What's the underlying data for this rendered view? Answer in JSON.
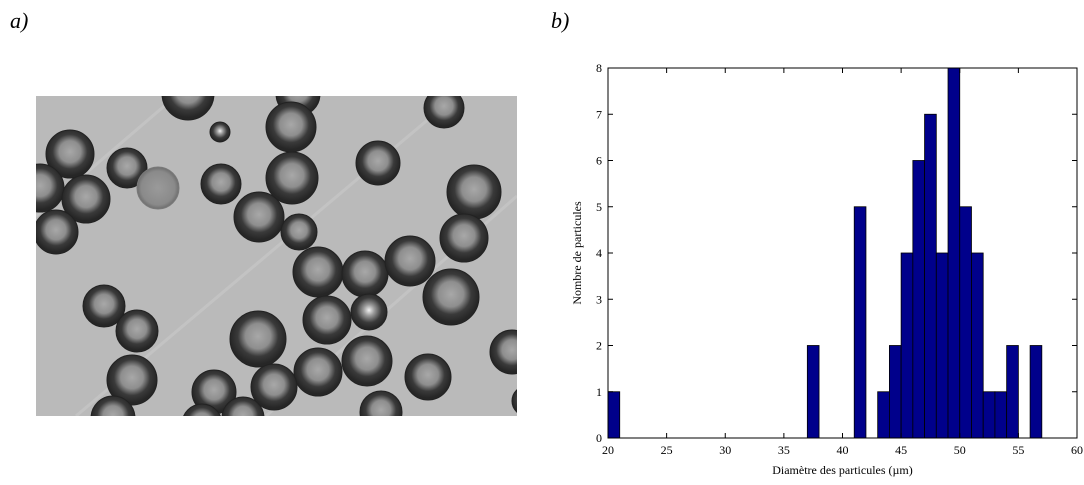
{
  "panels": {
    "a_label": "a)",
    "b_label": "b)"
  },
  "colors": {
    "bar_fill": "#00008b",
    "bar_stroke": "#000000",
    "micrograph_bg": "#b9b9b9",
    "droplet_dark": "#2f2f2f",
    "droplet_center": "#a5a5a5"
  },
  "chart_data": {
    "type": "bar",
    "xlabel": "Diamètre des particules (µm)",
    "ylabel": "Nombre de particules",
    "xlim": [
      20,
      60
    ],
    "ylim": [
      0,
      8
    ],
    "xticks": [
      20,
      25,
      30,
      35,
      40,
      45,
      50,
      55,
      60
    ],
    "yticks": [
      0,
      1,
      2,
      3,
      4,
      5,
      6,
      7,
      8
    ],
    "bin_width": 1,
    "bins": [
      {
        "x": 20,
        "count": 1
      },
      {
        "x": 37,
        "count": 2
      },
      {
        "x": 41,
        "count": 5
      },
      {
        "x": 43,
        "count": 1
      },
      {
        "x": 44,
        "count": 2
      },
      {
        "x": 45,
        "count": 4
      },
      {
        "x": 46,
        "count": 6
      },
      {
        "x": 47,
        "count": 7
      },
      {
        "x": 48,
        "count": 4
      },
      {
        "x": 49,
        "count": 8
      },
      {
        "x": 50,
        "count": 5
      },
      {
        "x": 51,
        "count": 4
      },
      {
        "x": 52,
        "count": 1
      },
      {
        "x": 53,
        "count": 1
      },
      {
        "x": 54,
        "count": 2
      },
      {
        "x": 56,
        "count": 2
      }
    ],
    "grid": false,
    "legend": "none"
  }
}
